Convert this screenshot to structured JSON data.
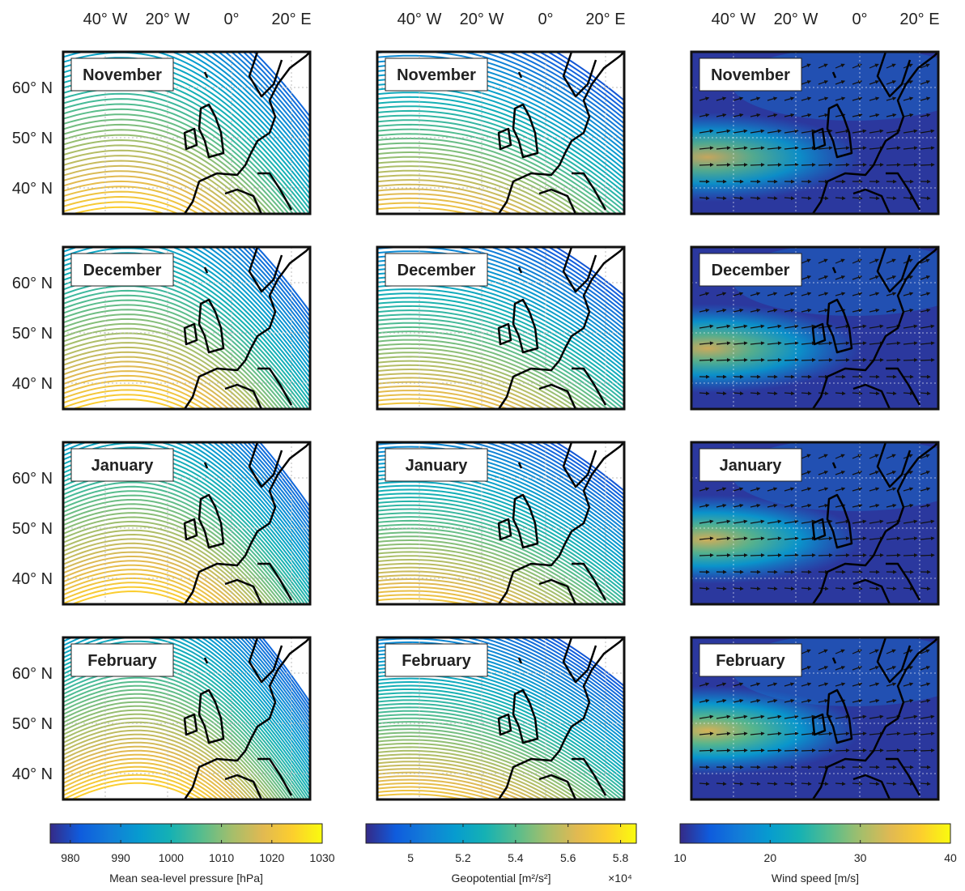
{
  "longitude_labels": [
    "40° W",
    "20° W",
    "0°",
    "20° E"
  ],
  "latitude_labels": [
    "60° N",
    "50° N",
    "40° N"
  ],
  "months": [
    "November",
    "December",
    "January",
    "February"
  ],
  "colorbars": [
    {
      "label": "Mean sea-level pressure [hPa]",
      "lim": [
        976,
        1030
      ],
      "ticks": [
        980,
        990,
        1000,
        1010,
        1020,
        1030
      ]
    },
    {
      "label": "Geopotential [m²/s²]",
      "multiplier": "×10⁴",
      "lim": [
        4.83,
        5.86
      ],
      "ticks": [
        5,
        5.2,
        5.4,
        5.6,
        5.8
      ]
    },
    {
      "label": "Wind speed [m/s]",
      "lim": [
        10,
        40
      ],
      "ticks": [
        10,
        20,
        30,
        40
      ]
    }
  ]
}
